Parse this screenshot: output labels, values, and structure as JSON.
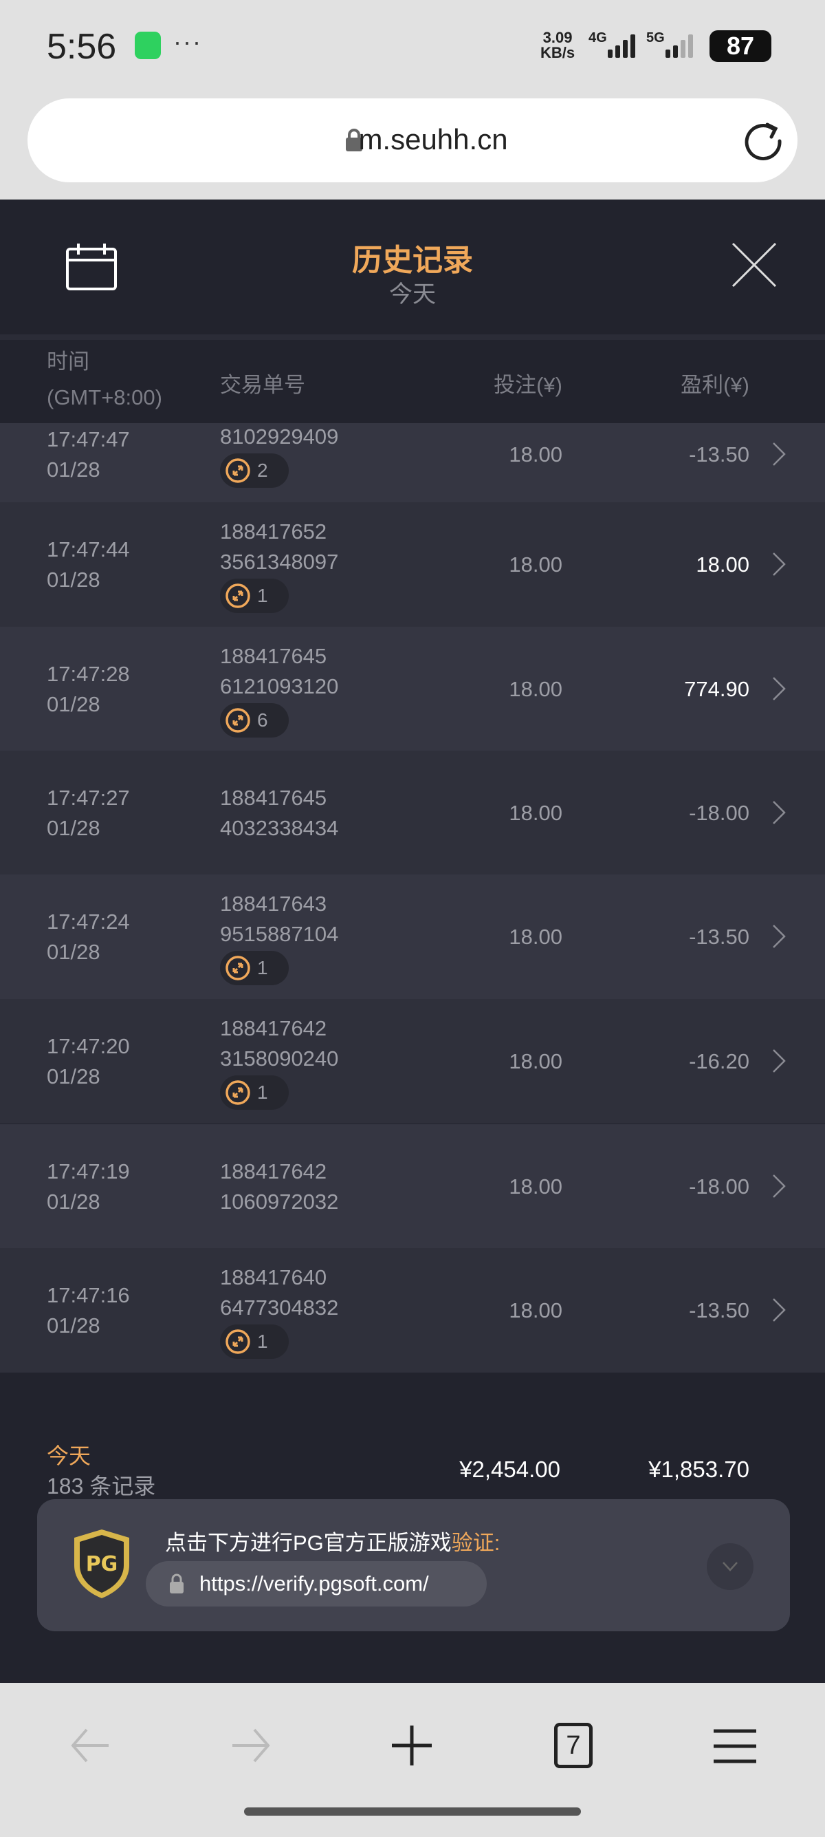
{
  "status_bar": {
    "time": "5:56",
    "net_speed_value": "3.09",
    "net_speed_unit": "KB/s",
    "sim1": "4G",
    "sim2": "5G",
    "battery": "87"
  },
  "browser": {
    "url": "m.seuhh.cn",
    "tab_count": "7"
  },
  "header": {
    "title": "历史记录",
    "subtitle": "今天"
  },
  "columns": {
    "time": "时间",
    "timezone": "(GMT+8:00)",
    "order": "交易单号",
    "bet": "投注(¥)",
    "profit": "盈利(¥)"
  },
  "rows": [
    {
      "time": "17:47:47",
      "date": "01/28",
      "order1": "",
      "order2": "8102929409",
      "badge": "2",
      "bet": "18.00",
      "profit": "-13.50",
      "positive": false
    },
    {
      "time": "17:47:44",
      "date": "01/28",
      "order1": "188417652",
      "order2": "3561348097",
      "badge": "1",
      "bet": "18.00",
      "profit": "18.00",
      "positive": true
    },
    {
      "time": "17:47:28",
      "date": "01/28",
      "order1": "188417645",
      "order2": "6121093120",
      "badge": "6",
      "bet": "18.00",
      "profit": "774.90",
      "positive": true
    },
    {
      "time": "17:47:27",
      "date": "01/28",
      "order1": "188417645",
      "order2": "4032338434",
      "badge": null,
      "bet": "18.00",
      "profit": "-18.00",
      "positive": false
    },
    {
      "time": "17:47:24",
      "date": "01/28",
      "order1": "188417643",
      "order2": "9515887104",
      "badge": "1",
      "bet": "18.00",
      "profit": "-13.50",
      "positive": false
    },
    {
      "time": "17:47:20",
      "date": "01/28",
      "order1": "188417642",
      "order2": "3158090240",
      "badge": "1",
      "bet": "18.00",
      "profit": "-16.20",
      "positive": false
    },
    {
      "time": "17:47:19",
      "date": "01/28",
      "order1": "188417642",
      "order2": "1060972032",
      "badge": null,
      "bet": "18.00",
      "profit": "-18.00",
      "positive": false
    },
    {
      "time": "17:47:16",
      "date": "01/28",
      "order1": "188417640",
      "order2": "6477304832",
      "badge": "1",
      "bet": "18.00",
      "profit": "-13.50",
      "positive": false
    }
  ],
  "summary": {
    "period": "今天",
    "count": "183 条记录",
    "total_bet": "¥2,454.00",
    "total_profit": "¥1,853.70"
  },
  "verify": {
    "logo_text": "PG",
    "text": "点击下方进行PG官方正版游戏",
    "highlight": "验证",
    "colon": ":",
    "url": "https://verify.pgsoft.com/"
  },
  "colors": {
    "accent": "#f0a85a",
    "background": "#22232d",
    "row_light": "#353642",
    "row_dark": "#2f303b"
  }
}
